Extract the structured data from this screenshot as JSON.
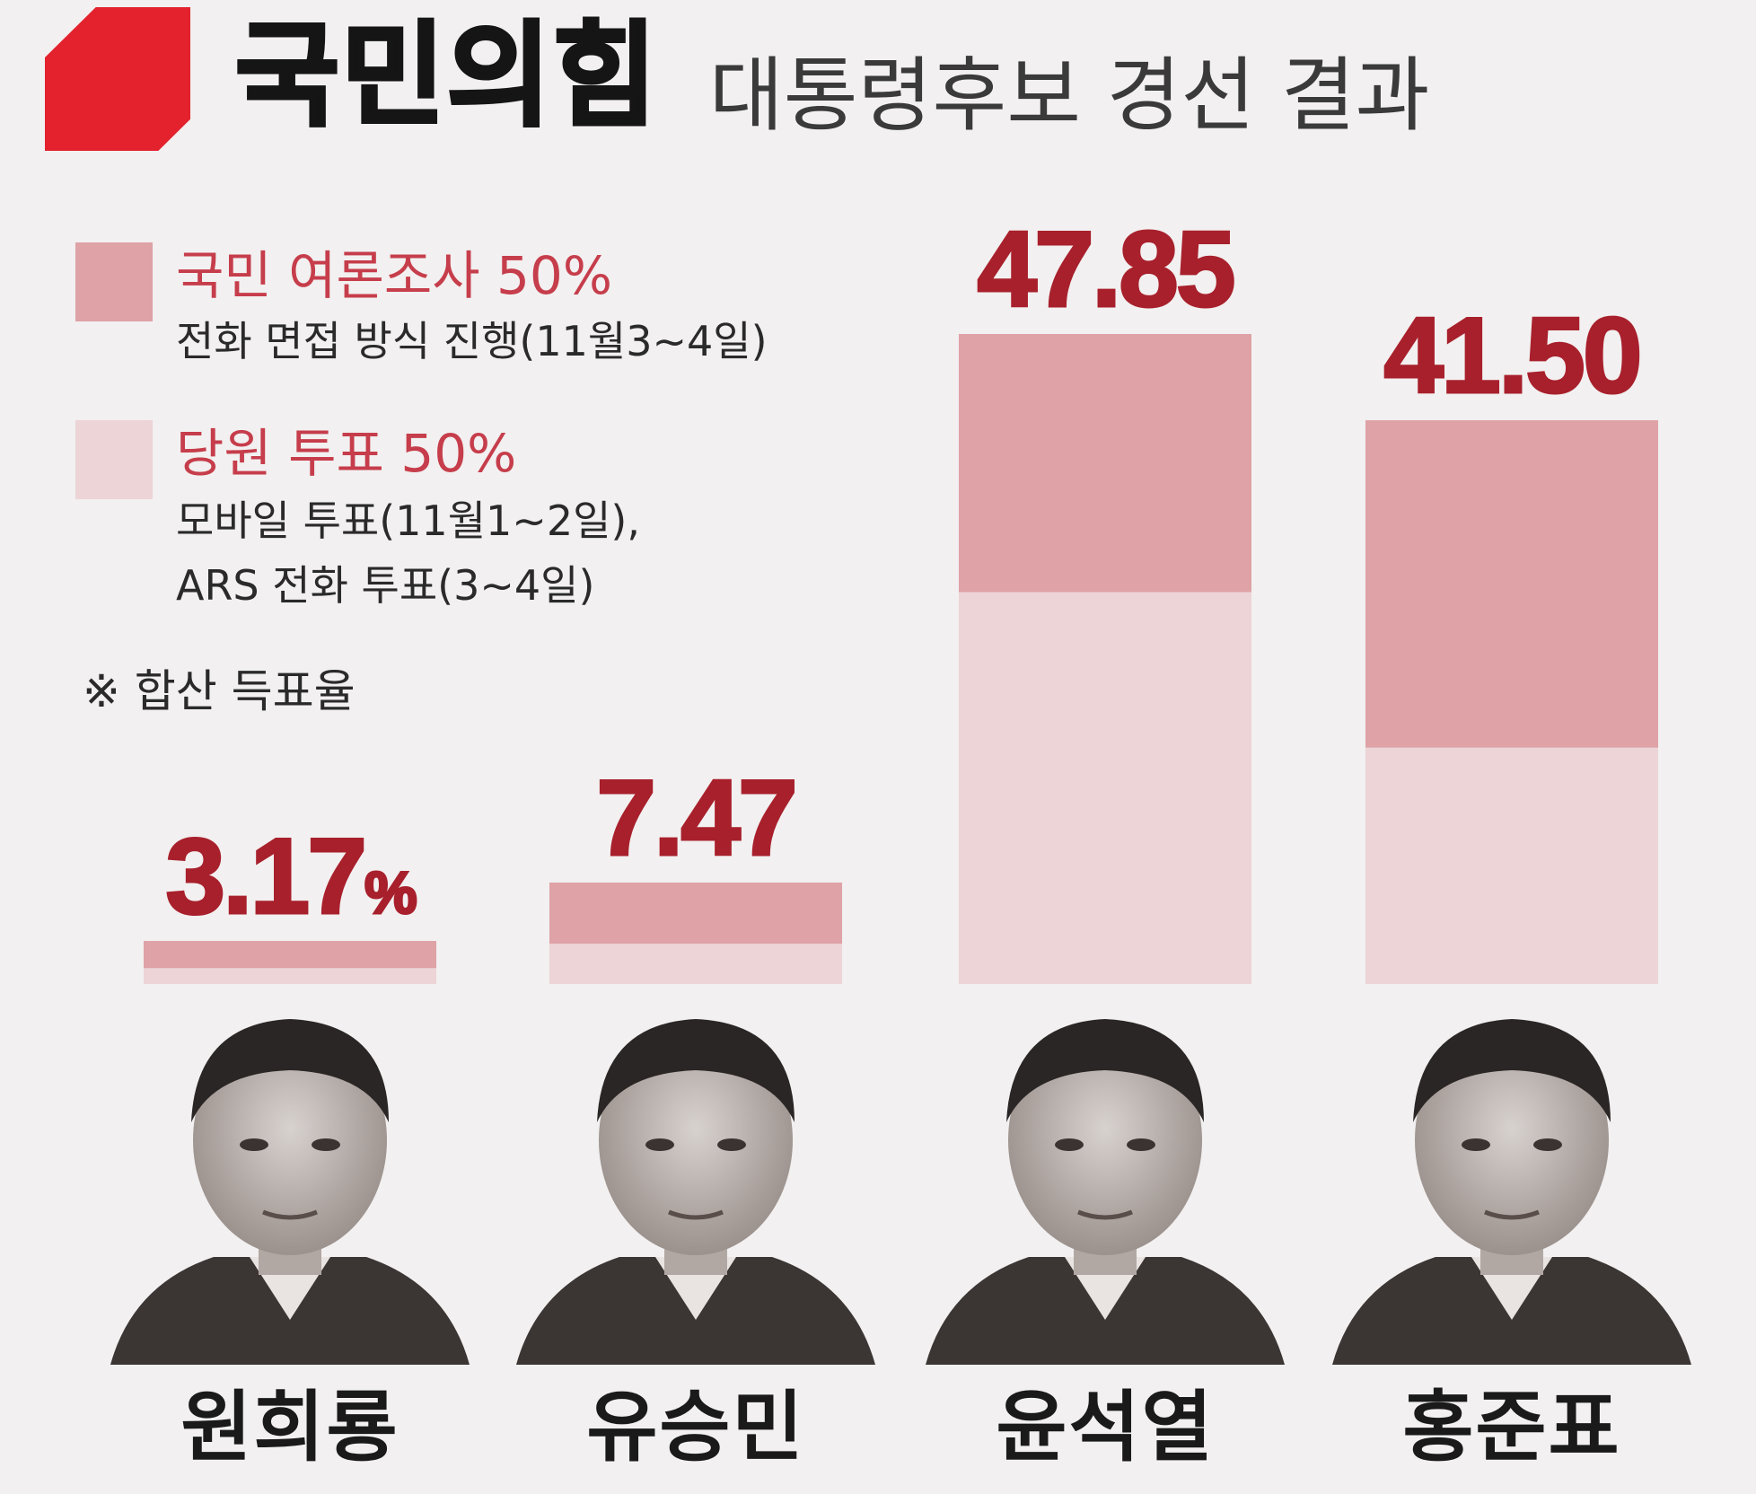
{
  "header": {
    "party": "국민의힘",
    "subtitle": "대통령후보 경선 결과"
  },
  "legend": [
    {
      "title": "국민 여론조사 50%",
      "description": "전화 면접 방식 진행(11월3~4일)",
      "color": "#dea2a7"
    },
    {
      "title": "당원 투표 50%",
      "description_line1": "모바일 투표(11월1~2일),",
      "description_line2": "ARS 전화 투표(3~4일)",
      "color": "#ecd4d7"
    }
  ],
  "note": "※ 합산 득표율",
  "colors": {
    "brand": "#e3222e",
    "value_text": "#a8202c",
    "survey": "#dea2a7",
    "member": "#ecd4d7"
  },
  "chart_data": {
    "type": "bar",
    "stacked": true,
    "categories": [
      "원희룡",
      "유승민",
      "윤석열",
      "홍준표"
    ],
    "values": [
      3.17,
      7.47,
      47.85,
      41.5
    ],
    "value_labels": [
      "3.17",
      "7.47",
      "47.85",
      "41.50"
    ],
    "unit": "%",
    "series": [
      {
        "name": "국민 여론조사 50%",
        "values": [
          2.0,
          4.5,
          19.0,
          24.1
        ]
      },
      {
        "name": "당원 투표 50%",
        "values": [
          1.17,
          2.97,
          28.85,
          17.4
        ]
      }
    ],
    "ylim": [
      0,
      47.85
    ]
  },
  "candidates": [
    {
      "name": "원희룡",
      "photo": "portrait-photo"
    },
    {
      "name": "유승민",
      "photo": "portrait-photo"
    },
    {
      "name": "윤석열",
      "photo": "portrait-photo"
    },
    {
      "name": "홍준표",
      "photo": "portrait-photo"
    }
  ]
}
